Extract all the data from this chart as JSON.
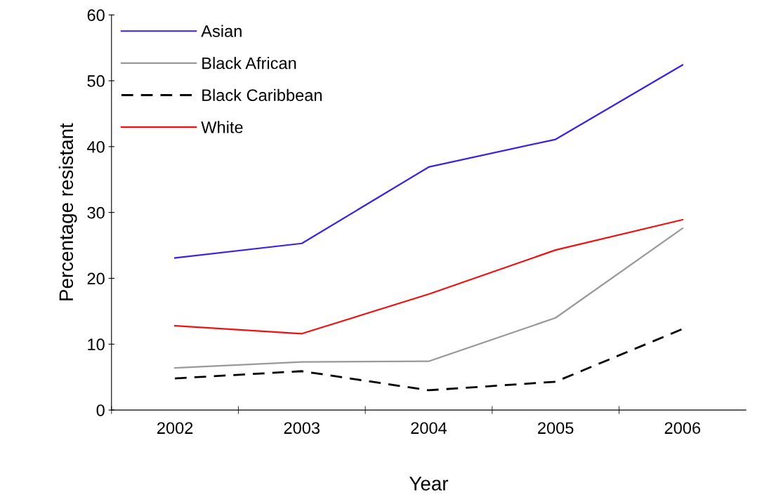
{
  "chart_data": {
    "type": "line",
    "xlabel": "Year",
    "ylabel": "Percentage resistant",
    "categories": [
      "2002",
      "2003",
      "2004",
      "2005",
      "2006"
    ],
    "series": [
      {
        "name": "Asian",
        "color": "#3b22e0",
        "values": [
          23.1,
          25.3,
          36.9,
          41.1,
          52.4
        ]
      },
      {
        "name": "Black African",
        "color": "#999999",
        "values": [
          6.4,
          7.3,
          7.4,
          14.0,
          27.6
        ]
      },
      {
        "name": "Black Caribbean",
        "color": "#000000",
        "line_style": "dashed",
        "values": [
          4.8,
          5.9,
          3.0,
          4.3,
          12.3
        ]
      },
      {
        "name": "White",
        "color": "#f01010",
        "values": [
          12.8,
          11.6,
          17.6,
          24.3,
          28.9
        ]
      }
    ],
    "ylim": [
      0,
      60
    ],
    "yticks": [
      0,
      10,
      20,
      30,
      40,
      50,
      60
    ],
    "grid": false,
    "legend": "top left",
    "marker": "none",
    "line_style": "solid"
  }
}
